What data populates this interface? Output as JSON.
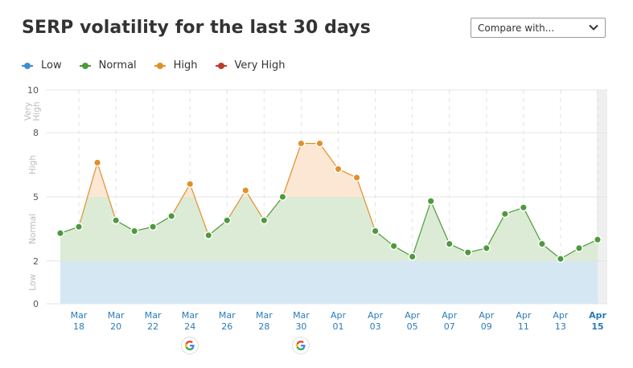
{
  "header": {
    "title": "SERP volatility for the last 30 days",
    "compare_label": "Compare with..."
  },
  "legend": [
    {
      "label": "Low",
      "color": "#3d8fd1"
    },
    {
      "label": "Normal",
      "color": "#4d9a3c"
    },
    {
      "label": "High",
      "color": "#e0902b"
    },
    {
      "label": "Very High",
      "color": "#c0392b"
    }
  ],
  "chart_data": {
    "type": "area",
    "ylim": [
      0,
      10
    ],
    "yticks": [
      0,
      2,
      5,
      8,
      10
    ],
    "bands": [
      {
        "label": "Low",
        "from": 0,
        "to": 2,
        "color": "#d5e7f3"
      },
      {
        "label": "Normal",
        "from": 2,
        "to": 5,
        "color": "#dcebd5"
      },
      {
        "label": "High",
        "from": 5,
        "to": 8,
        "color": "#fbe7d3"
      },
      {
        "label": "Very High",
        "from": 8,
        "to": 10,
        "color": "#f6dcda"
      }
    ],
    "band_labels": [
      {
        "label": "Low",
        "from": 0,
        "to": 2
      },
      {
        "label": "Normal",
        "from": 2,
        "to": 5
      },
      {
        "label": "High",
        "from": 5,
        "to": 8
      },
      {
        "label": "Very High",
        "from": 8,
        "to": 10
      }
    ],
    "x_start": "Mar 17",
    "x": [
      "Mar 17",
      "Mar 18",
      "Mar 19",
      "Mar 20",
      "Mar 21",
      "Mar 22",
      "Mar 23",
      "Mar 24",
      "Mar 25",
      "Mar 26",
      "Mar 27",
      "Mar 28",
      "Mar 29",
      "Mar 30",
      "Mar 31",
      "Apr 01",
      "Apr 02",
      "Apr 03",
      "Apr 04",
      "Apr 05",
      "Apr 06",
      "Apr 07",
      "Apr 08",
      "Apr 09",
      "Apr 10",
      "Apr 11",
      "Apr 12",
      "Apr 13",
      "Apr 14",
      "Apr 15"
    ],
    "values": [
      3.3,
      3.6,
      6.6,
      3.9,
      3.4,
      3.6,
      4.1,
      5.6,
      3.2,
      3.9,
      5.3,
      3.9,
      5.0,
      7.5,
      7.5,
      6.3,
      5.9,
      3.4,
      2.7,
      2.2,
      4.8,
      2.8,
      2.4,
      2.6,
      4.2,
      4.5,
      2.8,
      2.1,
      2.6,
      3.0
    ],
    "xtick_labels": [
      {
        "month": "Mar",
        "day": "18"
      },
      {
        "month": "Mar",
        "day": "20"
      },
      {
        "month": "Mar",
        "day": "22"
      },
      {
        "month": "Mar",
        "day": "24"
      },
      {
        "month": "Mar",
        "day": "26"
      },
      {
        "month": "Mar",
        "day": "28"
      },
      {
        "month": "Mar",
        "day": "30"
      },
      {
        "month": "Apr",
        "day": "01"
      },
      {
        "month": "Apr",
        "day": "03"
      },
      {
        "month": "Apr",
        "day": "05"
      },
      {
        "month": "Apr",
        "day": "07"
      },
      {
        "month": "Apr",
        "day": "09"
      },
      {
        "month": "Apr",
        "day": "11"
      },
      {
        "month": "Apr",
        "day": "13"
      },
      {
        "month": "Apr",
        "day": "15"
      }
    ],
    "google_updates": [
      "Mar 24",
      "Mar 30"
    ],
    "grid": true
  }
}
